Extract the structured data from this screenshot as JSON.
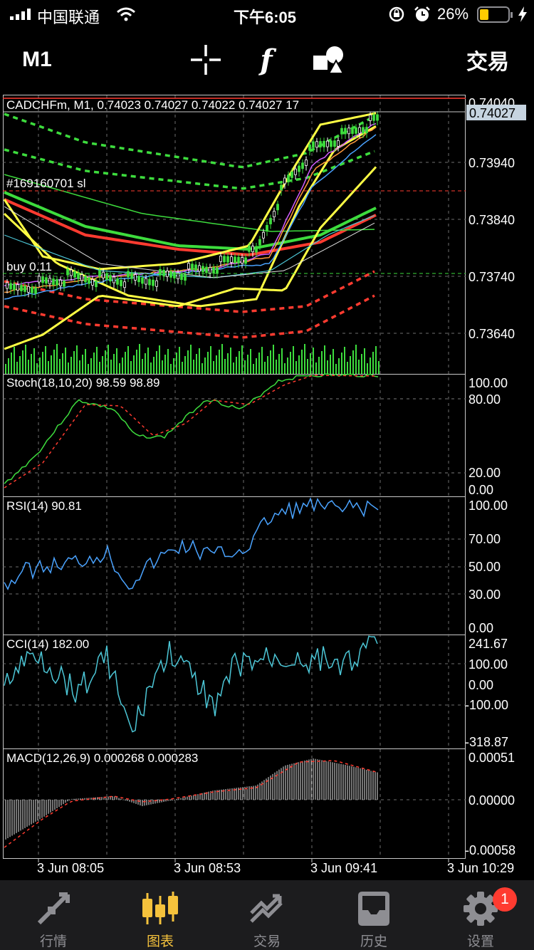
{
  "status_bar": {
    "carrier": "中国联通",
    "time": "下午6:05",
    "battery": "26%"
  },
  "toolbar": {
    "timeframe": "M1",
    "trade": "交易",
    "function_glyph": "f"
  },
  "main_chart": {
    "header": "CADCHFm, M1, 0.74023 0.74027 0.74022 0.74027 17",
    "order_label": "#169160701 sl",
    "position_label": "buy 0.11",
    "current_price": "0.74027",
    "prices": [
      "0.74040",
      "0.73940",
      "0.73840",
      "0.73740",
      "0.73640"
    ]
  },
  "indicators": {
    "stoch": {
      "label": "Stoch(18,10,20) 98.59 98.89",
      "levels": [
        "100.00",
        "80.00",
        "20.00",
        "0.00"
      ]
    },
    "rsi": {
      "label": "RSI(14) 90.81",
      "levels": [
        "100.00",
        "70.00",
        "50.00",
        "30.00",
        "0.00"
      ]
    },
    "cci": {
      "label": "CCI(14) 182.00",
      "levels": [
        "241.67",
        "100.00",
        "0.00",
        "-100.00",
        "-318.87"
      ]
    },
    "macd": {
      "label": "MACD(12,26,9) 0.000268 0.000283",
      "levels": [
        "0.00051",
        "0.00000",
        "-0.00058"
      ]
    }
  },
  "time_axis": [
    "3 Jun 08:05",
    "3 Jun 08:53",
    "3 Jun 09:41",
    "3 Jun 10:29"
  ],
  "tabs": [
    {
      "label": "行情",
      "icon": "quotes-icon"
    },
    {
      "label": "图表",
      "icon": "chart-icon",
      "active": true
    },
    {
      "label": "交易",
      "icon": "trade-icon"
    },
    {
      "label": "历史",
      "icon": "history-icon"
    },
    {
      "label": "设置",
      "icon": "settings-icon",
      "badge": "1"
    }
  ],
  "colors": {
    "accent": "#f5c23c",
    "bull": "#3ddc3d",
    "bear": "#ff3b30",
    "yellow": "#ffff44",
    "blue": "#4aa3ff",
    "cyan": "#4cc6d6",
    "badge": "#ff3b30"
  }
}
